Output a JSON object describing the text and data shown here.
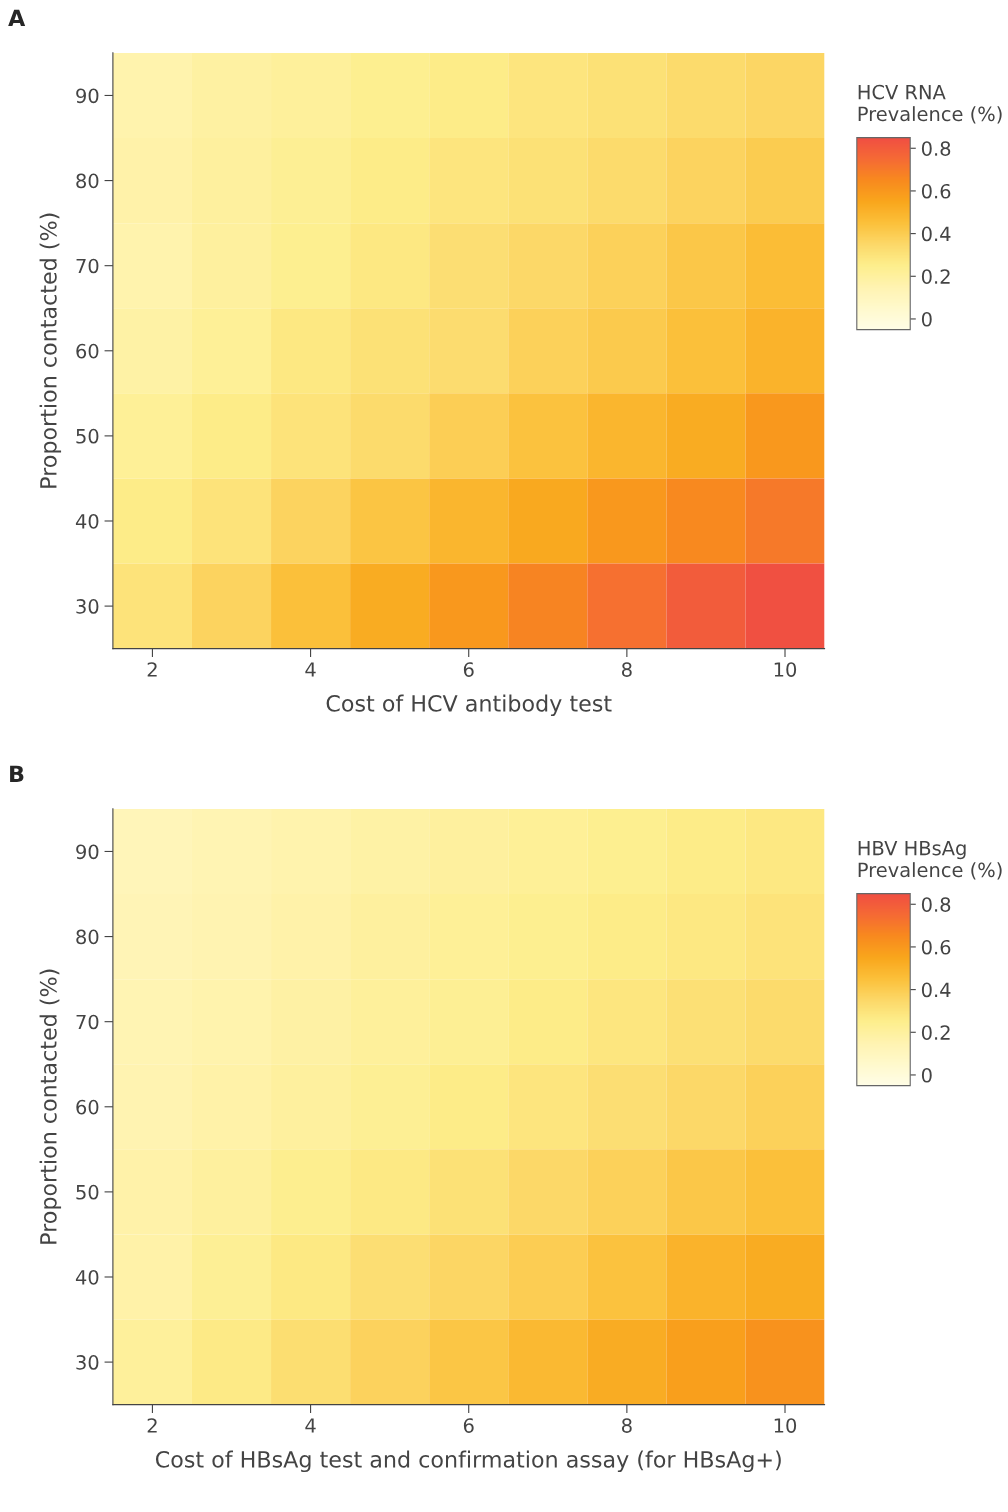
{
  "chart_data": [
    {
      "type": "heatmap",
      "title": "A",
      "xlabel": "Cost of HCV antibody test",
      "ylabel": "Proportion contacted (%)",
      "clabel": "HCV RNA\nPrevalence (%)",
      "categories": [
        "2",
        null,
        "4",
        null,
        "6",
        null,
        "8",
        null,
        "10"
      ],
      "y_categories": [
        "90",
        "80",
        "70",
        "60",
        "50",
        "40",
        "30"
      ],
      "cells": [
        [
          0.16,
          0.19,
          0.21,
          0.24,
          0.26,
          0.29,
          0.31,
          0.34,
          0.36
        ],
        [
          0.17,
          0.2,
          0.23,
          0.26,
          0.29,
          0.31,
          0.34,
          0.37,
          0.4
        ],
        [
          0.16,
          0.2,
          0.24,
          0.28,
          0.32,
          0.35,
          0.38,
          0.42,
          0.46
        ],
        [
          0.18,
          0.22,
          0.28,
          0.31,
          0.33,
          0.38,
          0.41,
          0.45,
          0.5
        ],
        [
          0.22,
          0.26,
          0.3,
          0.34,
          0.39,
          0.44,
          0.49,
          0.53,
          0.6
        ],
        [
          0.26,
          0.3,
          0.37,
          0.43,
          0.49,
          0.54,
          0.6,
          0.65,
          0.7
        ],
        [
          0.3,
          0.37,
          0.45,
          0.53,
          0.6,
          0.67,
          0.73,
          0.8,
          0.84
        ]
      ],
      "clim": [
        -0.05,
        0.85
      ],
      "cticks": [
        0,
        0.2,
        0.4,
        0.6,
        0.8
      ],
      "colors": [
        "#fffde6",
        "#fff9cc",
        "#fff3b0",
        "#fdee8c",
        "#fcd868",
        "#fbc03a",
        "#f9a61c",
        "#f88a1e",
        "#f56a34",
        "#f04e42"
      ]
    },
    {
      "type": "heatmap",
      "title": "B",
      "xlabel": "Cost of HBsAg test and confirmation assay (for HBsAg+)",
      "ylabel": "Proportion contacted (%)",
      "clabel": "HBV HBsAg\nPrevalence (%)",
      "categories": [
        "2",
        null,
        "4",
        null,
        "6",
        null,
        "8",
        null,
        "10"
      ],
      "y_categories": [
        "90",
        "80",
        "70",
        "60",
        "50",
        "40",
        "30"
      ],
      "cells": [
        [
          0.12,
          0.14,
          0.16,
          0.18,
          0.2,
          0.22,
          0.24,
          0.26,
          0.28
        ],
        [
          0.13,
          0.15,
          0.17,
          0.2,
          0.22,
          0.24,
          0.26,
          0.28,
          0.3
        ],
        [
          0.14,
          0.16,
          0.185,
          0.21,
          0.23,
          0.26,
          0.285,
          0.315,
          0.34
        ],
        [
          0.15,
          0.175,
          0.2,
          0.23,
          0.26,
          0.29,
          0.32,
          0.35,
          0.38
        ],
        [
          0.17,
          0.2,
          0.245,
          0.27,
          0.31,
          0.35,
          0.38,
          0.42,
          0.45
        ],
        [
          0.175,
          0.225,
          0.275,
          0.32,
          0.36,
          0.395,
          0.44,
          0.5,
          0.53
        ],
        [
          0.21,
          0.267,
          0.325,
          0.375,
          0.425,
          0.475,
          0.525,
          0.575,
          0.62
        ]
      ],
      "clim": [
        -0.05,
        0.85
      ],
      "cticks": [
        0,
        0.2,
        0.4,
        0.6,
        0.8
      ],
      "colors": [
        "#fffde6",
        "#fff9cc",
        "#fff3b0",
        "#fdee8c",
        "#fcd868",
        "#fbc03a",
        "#f9a61c",
        "#f88a1e",
        "#f56a34",
        "#f04e42"
      ]
    }
  ]
}
